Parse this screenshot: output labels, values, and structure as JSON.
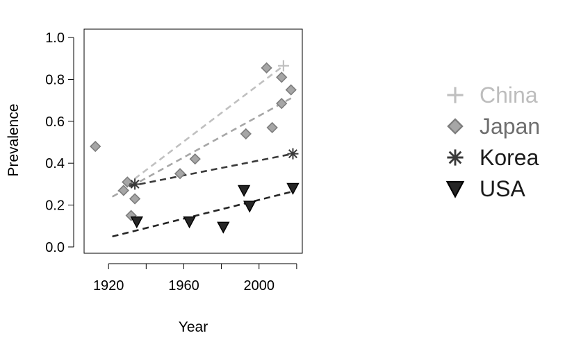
{
  "chart_data": {
    "type": "scatter",
    "title": "",
    "xlabel": "Year",
    "ylabel": "Prevalence",
    "xlim": [
      1907,
      2023
    ],
    "ylim": [
      -0.03,
      1.04
    ],
    "x_ticks": [
      1920,
      1960,
      2000
    ],
    "x_tick_marks": [
      1920,
      1940,
      1960,
      1980,
      2000,
      2020
    ],
    "y_ticks": [
      0.0,
      0.2,
      0.4,
      0.6,
      0.8,
      1.0
    ],
    "y_tick_labels": [
      "0.0",
      "0.2",
      "0.4",
      "0.6",
      "0.8",
      "1.0"
    ],
    "grid": false,
    "legend_position": "right",
    "series": [
      {
        "name": "China",
        "marker": "plus",
        "color": "#c0c0c0",
        "points": [
          [
            2013,
            0.865
          ]
        ],
        "trend": [
          [
            1925,
            0.265
          ],
          [
            2013,
            0.865
          ]
        ]
      },
      {
        "name": "Japan",
        "marker": "diamond",
        "color": "#a6a6a6",
        "points": [
          [
            1913,
            0.48
          ],
          [
            1928,
            0.27
          ],
          [
            1930,
            0.31
          ],
          [
            1932,
            0.15
          ],
          [
            1934,
            0.23
          ],
          [
            1958,
            0.35
          ],
          [
            1966,
            0.42
          ],
          [
            1993,
            0.54
          ],
          [
            2004,
            0.855
          ],
          [
            2007,
            0.57
          ],
          [
            2012,
            0.81
          ],
          [
            2012,
            0.685
          ],
          [
            2017,
            0.75
          ]
        ],
        "trend": [
          [
            1922,
            0.24
          ],
          [
            2017,
            0.71
          ]
        ]
      },
      {
        "name": "Korea",
        "marker": "asterisk",
        "color": "#3a3a3a",
        "points": [
          [
            1934,
            0.3
          ],
          [
            2018,
            0.445
          ]
        ],
        "trend": [
          [
            1931,
            0.29
          ],
          [
            2018,
            0.445
          ]
        ]
      },
      {
        "name": "USA",
        "marker": "triangle-down",
        "color": "#262626",
        "points": [
          [
            1935,
            0.12
          ],
          [
            1963,
            0.12
          ],
          [
            1981,
            0.095
          ],
          [
            1992,
            0.27
          ],
          [
            1995,
            0.195
          ],
          [
            2018,
            0.28
          ]
        ],
        "trend": [
          [
            1922,
            0.05
          ],
          [
            2018,
            0.265
          ]
        ]
      }
    ]
  }
}
